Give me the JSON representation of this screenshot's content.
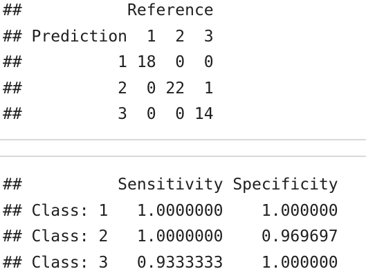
{
  "confusion_matrix_output": {
    "lines": [
      "##           Reference",
      "## Prediction  1  2  3",
      "##          1 18  0  0",
      "##          2  0 22  1",
      "##          3  0  0 14"
    ]
  },
  "by_class_output": {
    "lines": [
      "##          Sensitivity Specificity",
      "## Class: 1   1.0000000    1.000000",
      "## Class: 2   1.0000000    0.969697",
      "## Class: 3   0.9333333    1.000000"
    ]
  },
  "colors": {
    "text": "#1f1f1f",
    "divider": "#d9d9d9",
    "background": "#ffffff"
  }
}
